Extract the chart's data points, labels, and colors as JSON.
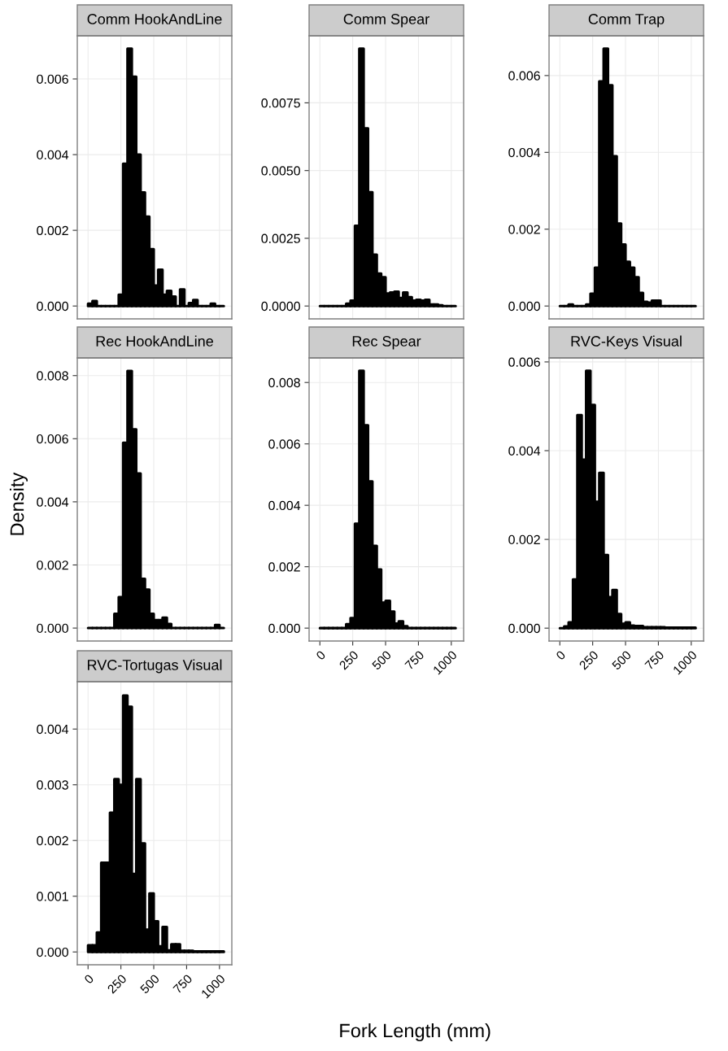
{
  "chart_data": [
    {
      "type": "histogram",
      "title": "Comm HookAndLine",
      "color": "#000000",
      "grid": true,
      "tick_labels": "y",
      "bins": [
        0,
        33.3,
        66.7,
        100,
        133.3,
        166.7,
        200,
        233.3,
        266.7,
        300,
        333.3,
        366.7,
        400,
        433.3,
        466.7,
        500,
        533.3,
        566.7,
        600,
        633.3,
        666.7,
        700,
        733.3,
        766.7,
        800,
        833.3,
        866.7,
        900,
        933.3,
        966.7,
        1000,
        1033.3
      ],
      "values": [
        6e-05,
        0.00013,
        0,
        0,
        0,
        0,
        0,
        0.0003,
        0.00376,
        0.0068,
        0.00606,
        0.004,
        0.003,
        0.00236,
        0.0015,
        0.00054,
        0.00096,
        0.0003,
        0.0004,
        0.00025,
        0,
        0.00044,
        0,
        8e-05,
        0.00016,
        0,
        0,
        0,
        6e-05,
        0,
        0
      ],
      "xlim": [
        -82,
        1094
      ],
      "xticks": [
        0,
        250,
        500,
        750,
        1000
      ],
      "ylim": [
        -0.00034,
        0.00714
      ],
      "yticks": [
        {
          "value": 0,
          "label": "0.000"
        },
        {
          "value": 0.002,
          "label": "0.002"
        },
        {
          "value": 0.004,
          "label": "0.004"
        },
        {
          "value": 0.006,
          "label": "0.006"
        }
      ]
    },
    {
      "type": "histogram",
      "title": "Comm Spear",
      "color": "#000000",
      "grid": true,
      "tick_labels": "y",
      "bins": [
        0,
        33.3,
        66.7,
        100,
        133.3,
        166.7,
        200,
        233.3,
        266.7,
        300,
        333.3,
        366.7,
        400,
        433.3,
        466.7,
        500,
        533.3,
        566.7,
        600,
        633.3,
        666.7,
        700,
        733.3,
        766.7,
        800,
        833.3,
        866.7,
        900,
        933.3,
        966.7,
        1000,
        1033.3
      ],
      "values": [
        0,
        0,
        0,
        0,
        0,
        0,
        9e-05,
        0.0002,
        0.00296,
        0.0095,
        0.00656,
        0.0042,
        0.0019,
        0.0012,
        0.00106,
        0.00046,
        0.0005,
        0.00053,
        0.0003,
        0.0005,
        0.00033,
        0.0002,
        0.00023,
        0.0002,
        0.00023,
        6e-05,
        6e-05,
        3e-05,
        0,
        0,
        0
      ],
      "xlim": [
        -82,
        1094
      ],
      "xticks": [
        0,
        250,
        500,
        750,
        1000
      ],
      "ylim": [
        -0.000475,
        0.009975
      ],
      "yticks": [
        {
          "value": 0,
          "label": "0.0000"
        },
        {
          "value": 0.0025,
          "label": "0.0025"
        },
        {
          "value": 0.005,
          "label": "0.0050"
        },
        {
          "value": 0.0075,
          "label": "0.0075"
        }
      ]
    },
    {
      "type": "histogram",
      "title": "Comm Trap",
      "color": "#000000",
      "grid": true,
      "tick_labels": "y",
      "bins": [
        0,
        33.3,
        66.7,
        100,
        133.3,
        166.7,
        200,
        233.3,
        266.7,
        300,
        333.3,
        366.7,
        400,
        433.3,
        466.7,
        500,
        533.3,
        566.7,
        600,
        633.3,
        666.7,
        700,
        733.3,
        766.7,
        800,
        833.3,
        866.7,
        900,
        933.3,
        966.7,
        1000,
        1033.3
      ],
      "values": [
        0,
        0,
        4e-05,
        0,
        0,
        0,
        4e-05,
        0.00032,
        0.001,
        0.00585,
        0.0067,
        0.00575,
        0.0039,
        0.00215,
        0.0016,
        0.00115,
        0.001,
        0.00075,
        0.00034,
        0.00011,
        9e-05,
        0.00014,
        0.00014,
        0,
        0,
        0,
        0,
        0,
        0,
        0,
        0
      ],
      "xlim": [
        -82,
        1094
      ],
      "xticks": [
        0,
        250,
        500,
        750,
        1000
      ],
      "ylim": [
        -0.000335,
        0.007035
      ],
      "yticks": [
        {
          "value": 0,
          "label": "0.000"
        },
        {
          "value": 0.002,
          "label": "0.002"
        },
        {
          "value": 0.004,
          "label": "0.004"
        },
        {
          "value": 0.006,
          "label": "0.006"
        }
      ]
    },
    {
      "type": "histogram",
      "title": "Rec HookAndLine",
      "color": "#000000",
      "grid": true,
      "tick_labels": "y",
      "ylabel": "Density",
      "bins": [
        0,
        33.3,
        66.7,
        100,
        133.3,
        166.7,
        200,
        233.3,
        266.7,
        300,
        333.3,
        366.7,
        400,
        433.3,
        466.7,
        500,
        533.3,
        566.7,
        600,
        633.3,
        666.7,
        700,
        733.3,
        766.7,
        800,
        833.3,
        866.7,
        900,
        933.3,
        966.7,
        1000,
        1033.3
      ],
      "values": [
        0,
        0,
        0,
        0,
        0,
        0,
        0.00045,
        0.00098,
        0.00587,
        0.00815,
        0.0063,
        0.0049,
        0.00156,
        0.00122,
        0.00045,
        0.00025,
        0.00025,
        0.00033,
        0.00013,
        0,
        0,
        0,
        0,
        0,
        0,
        0,
        0,
        0,
        0,
        0.0001,
        0
      ],
      "xlim": [
        -82,
        1094
      ],
      "xticks": [
        0,
        250,
        500,
        750,
        1000
      ],
      "ylim": [
        -0.00041,
        0.00856
      ],
      "yticks": [
        {
          "value": 0,
          "label": "0.000"
        },
        {
          "value": 0.002,
          "label": "0.002"
        },
        {
          "value": 0.004,
          "label": "0.004"
        },
        {
          "value": 0.006,
          "label": "0.006"
        },
        {
          "value": 0.008,
          "label": "0.008"
        }
      ]
    },
    {
      "type": "histogram",
      "title": "Rec Spear",
      "color": "#000000",
      "grid": true,
      "bins": [
        0,
        33.3,
        66.7,
        100,
        133.3,
        166.7,
        200,
        233.3,
        266.7,
        300,
        333.3,
        366.7,
        400,
        433.3,
        466.7,
        500,
        533.3,
        566.7,
        600,
        633.3,
        666.7,
        700,
        733.3,
        766.7,
        800,
        833.3,
        866.7,
        900,
        933.3,
        966.7,
        1000,
        1033.3
      ],
      "values": [
        0,
        0,
        0,
        0,
        0,
        0,
        0.00013,
        0.00033,
        0.0034,
        0.00838,
        0.00661,
        0.00478,
        0.00268,
        0.00191,
        0.00083,
        0.00089,
        0.00054,
        0.00015,
        0.00022,
        6e-05,
        0,
        0,
        0,
        0,
        0,
        0,
        0,
        0,
        0,
        0,
        0
      ],
      "xlim": [
        -82,
        1094
      ],
      "xticks": [
        0,
        250,
        500,
        750,
        1000
      ],
      "ylim": [
        -0.00042,
        0.0088
      ],
      "yticks": [
        {
          "value": 0,
          "label": "0.000"
        },
        {
          "value": 0.002,
          "label": "0.002"
        },
        {
          "value": 0.004,
          "label": "0.004"
        },
        {
          "value": 0.006,
          "label": "0.006"
        },
        {
          "value": 0.008,
          "label": "0.008"
        }
      ]
    },
    {
      "type": "histogram",
      "title": "RVC-Keys Visual",
      "color": "#000000",
      "grid": true,
      "bins": [
        0,
        33.3,
        66.7,
        100,
        133.3,
        166.7,
        200,
        233.3,
        266.7,
        300,
        333.3,
        366.7,
        400,
        433.3,
        466.7,
        500,
        533.3,
        566.7,
        600,
        633.3,
        666.7,
        700,
        733.3,
        766.7,
        800,
        833.3,
        866.7,
        900,
        933.3,
        966.7,
        1000,
        1033.3
      ],
      "values": [
        0,
        4e-05,
        0.00013,
        0.0011,
        0.0048,
        0.0038,
        0.0058,
        0.00503,
        0.00285,
        0.0035,
        0.00165,
        0.0007,
        0.00086,
        0.00032,
        0.0001,
        0.00013,
        6e-05,
        5e-05,
        5e-05,
        2e-05,
        2e-05,
        2e-05,
        2e-05,
        2e-05,
        1e-05,
        1e-05,
        1e-05,
        1e-05,
        1e-05,
        1e-05,
        1e-05
      ],
      "xlim": [
        -82,
        1094
      ],
      "xticks": [
        0,
        250,
        500,
        750,
        1000
      ],
      "ylim": [
        -0.00029,
        0.00609
      ],
      "yticks": [
        {
          "value": 0,
          "label": "0.000"
        },
        {
          "value": 0.002,
          "label": "0.002"
        },
        {
          "value": 0.004,
          "label": "0.004"
        },
        {
          "value": 0.006,
          "label": "0.006"
        }
      ]
    },
    {
      "type": "histogram",
      "title": "RVC-Tortugas Visual",
      "color": "#000000",
      "grid": true,
      "xlabel": "Fork Length (mm)",
      "bins": [
        0,
        33.3,
        66.7,
        100,
        133.3,
        166.7,
        200,
        233.3,
        266.7,
        300,
        333.3,
        366.7,
        400,
        433.3,
        466.7,
        500,
        533.3,
        566.7,
        600,
        633.3,
        666.7,
        700,
        733.3,
        766.7,
        800,
        833.3,
        866.7,
        900,
        933.3,
        966.7,
        1000,
        1033.3
      ],
      "values": [
        0.00012,
        0.00012,
        0.00035,
        0.0016,
        0.0016,
        0.0025,
        0.0031,
        0.003,
        0.0046,
        0.0044,
        0.0014,
        0.0031,
        0.00195,
        0.0004,
        0.00105,
        0.00055,
        0.0001,
        0.00045,
        3e-05,
        0.00014,
        0.00014,
        2e-05,
        2e-05,
        2e-05,
        1e-05,
        1e-05,
        1e-05,
        1e-05,
        1e-05,
        1e-05,
        1e-05
      ],
      "xlim": [
        -82,
        1094
      ],
      "xticks": [
        0,
        250,
        500,
        750,
        1000
      ],
      "ylim": [
        -0.00023,
        0.00485
      ],
      "yticks": [
        {
          "value": 0,
          "label": "0.000"
        },
        {
          "value": 0.001,
          "label": "0.001"
        },
        {
          "value": 0.002,
          "label": "0.002"
        },
        {
          "value": 0.003,
          "label": "0.003"
        },
        {
          "value": 0.004,
          "label": "0.004"
        }
      ]
    }
  ]
}
